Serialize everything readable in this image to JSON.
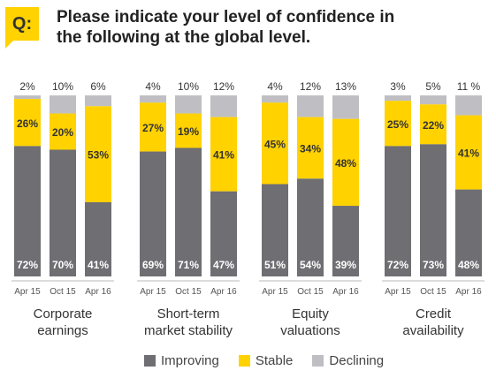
{
  "header": {
    "badge": "Q:",
    "question_line1": "Please indicate your level of confidence in",
    "question_line2": "the following at the global level."
  },
  "colors": {
    "improving": "#6e6e73",
    "stable": "#ffd200",
    "declining": "#bfbfc3",
    "label_light": "#ffffff",
    "label_dark": "#333333"
  },
  "legend": [
    {
      "name": "Improving",
      "color_key": "improving"
    },
    {
      "name": "Stable",
      "color_key": "stable"
    },
    {
      "name": "Declining",
      "color_key": "declining"
    }
  ],
  "chart_data": {
    "type": "bar",
    "stacked": true,
    "percent_scale": true,
    "ylim": [
      0,
      100
    ],
    "legend_position": "bottom",
    "x_categories": [
      "Apr 15",
      "Oct 15",
      "Apr 16"
    ],
    "groups": [
      {
        "label": "Corporate earnings",
        "label_lines": [
          "Corporate",
          "earnings"
        ],
        "bars": [
          {
            "period": "Apr 15",
            "improving": 72,
            "stable": 26,
            "declining": 2,
            "declining_label": "2%"
          },
          {
            "period": "Oct 15",
            "improving": 70,
            "stable": 20,
            "declining": 10,
            "declining_label": "10%"
          },
          {
            "period": "Apr 16",
            "improving": 41,
            "stable": 53,
            "declining": 6,
            "declining_label": "6%"
          }
        ]
      },
      {
        "label": "Short-term market stability",
        "label_lines": [
          "Short-term",
          "market stability"
        ],
        "bars": [
          {
            "period": "Apr 15",
            "improving": 69,
            "stable": 27,
            "declining": 4,
            "declining_label": "4%"
          },
          {
            "period": "Oct 15",
            "improving": 71,
            "stable": 19,
            "declining": 10,
            "declining_label": "10%"
          },
          {
            "period": "Apr 16",
            "improving": 47,
            "stable": 41,
            "declining": 12,
            "declining_label": "12%"
          }
        ]
      },
      {
        "label": "Equity valuations",
        "label_lines": [
          "Equity",
          "valuations"
        ],
        "bars": [
          {
            "period": "Apr 15",
            "improving": 51,
            "stable": 45,
            "declining": 4,
            "declining_label": "4%"
          },
          {
            "period": "Oct 15",
            "improving": 54,
            "stable": 34,
            "declining": 12,
            "declining_label": "12%"
          },
          {
            "period": "Apr 16",
            "improving": 39,
            "stable": 48,
            "declining": 13,
            "declining_label": "13%"
          }
        ]
      },
      {
        "label": "Credit availability",
        "label_lines": [
          "Credit",
          "availability"
        ],
        "bars": [
          {
            "period": "Apr 15",
            "improving": 72,
            "stable": 25,
            "declining": 3,
            "declining_label": "3%"
          },
          {
            "period": "Oct 15",
            "improving": 73,
            "stable": 22,
            "declining": 5,
            "declining_label": "5%"
          },
          {
            "period": "Apr 16",
            "improving": 48,
            "stable": 41,
            "declining": 11,
            "declining_label": "11 %"
          }
        ]
      }
    ]
  }
}
